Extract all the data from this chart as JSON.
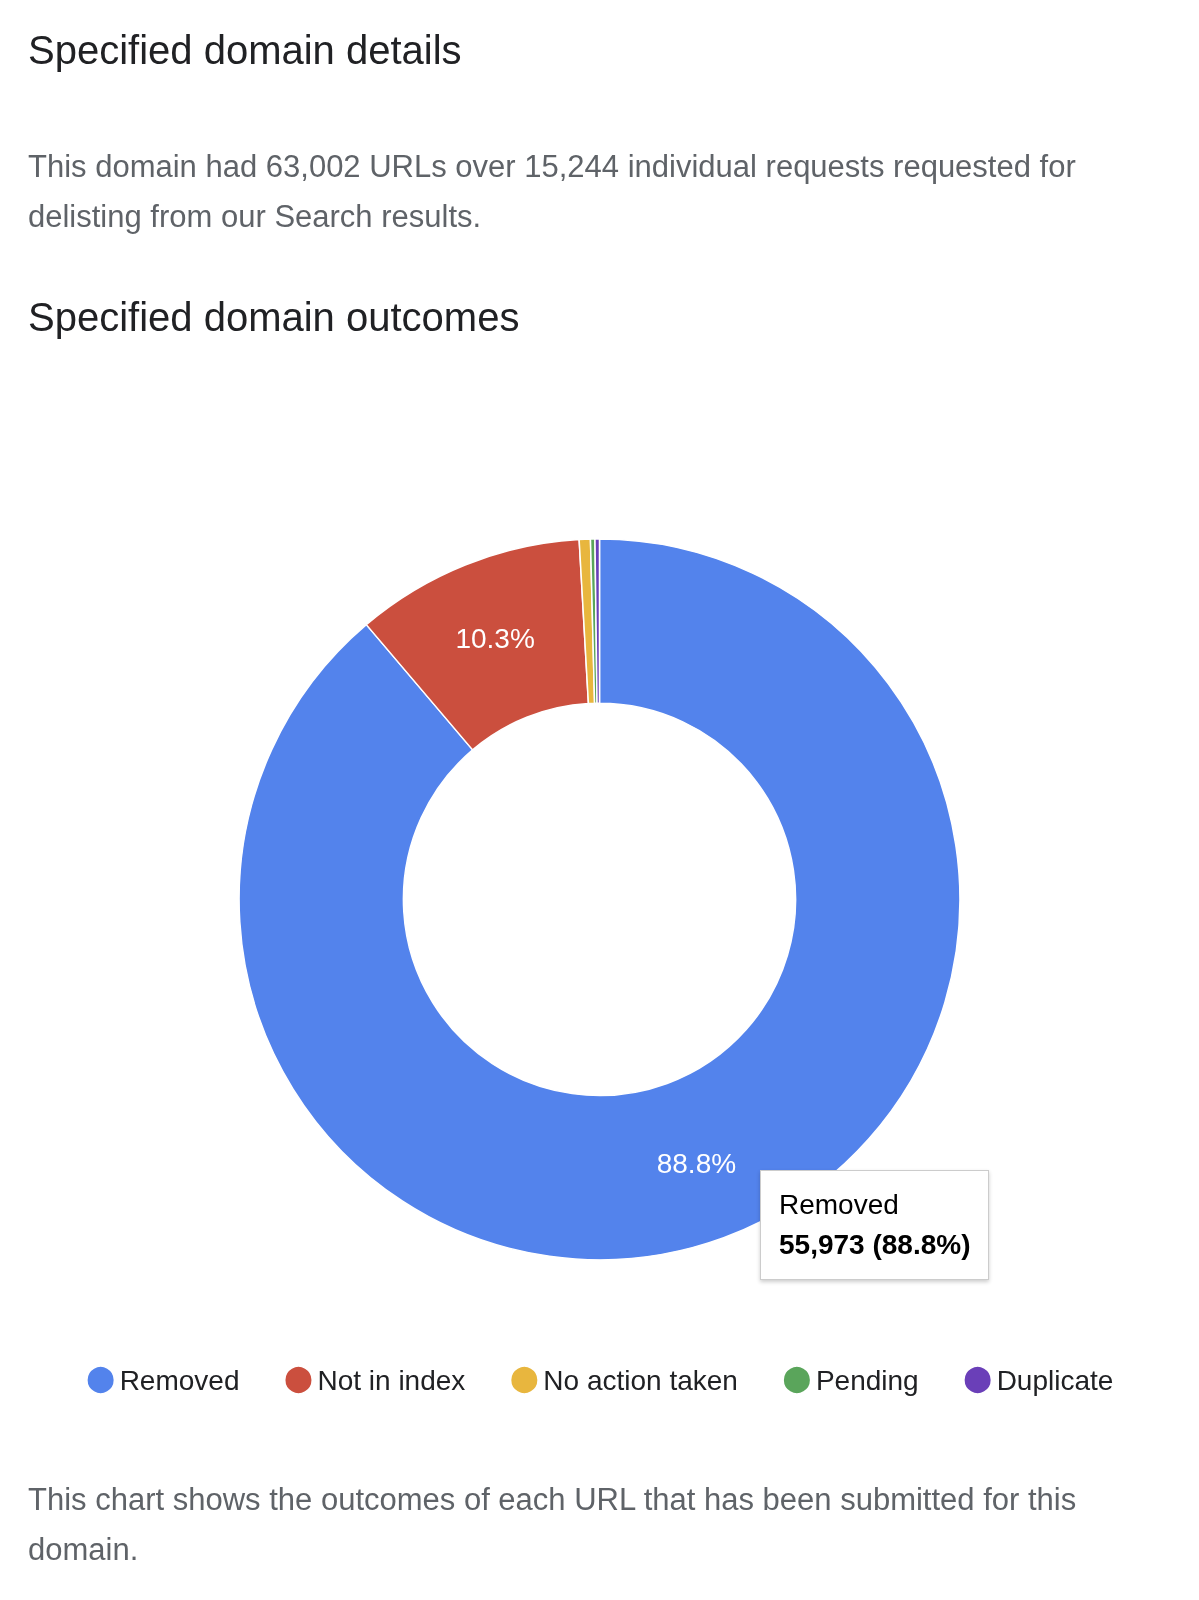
{
  "chart_data": {
    "type": "donut",
    "title": "Specified domain outcomes",
    "categories": [
      "Removed",
      "Not in index",
      "No action taken",
      "Pending",
      "Duplicate"
    ],
    "values": [
      88.8,
      10.3,
      0.5,
      0.2,
      0.2
    ],
    "colors": [
      "#5383ec",
      "#cb4f3e",
      "#e8b63e",
      "#5aa55b",
      "#6a3fb8"
    ],
    "value_labels": [
      "88.8%",
      "10.3%",
      null,
      null,
      null
    ],
    "legend": "bottom",
    "annotations": [
      "Specified domain details",
      "This domain had 63,002 URLs over 15,244 individual requests requested for delisting from our Search results.",
      "Removed",
      "55,973 (88.8%)",
      "This chart shows the outcomes of each URL that has been submitted for this domain."
    ]
  }
}
